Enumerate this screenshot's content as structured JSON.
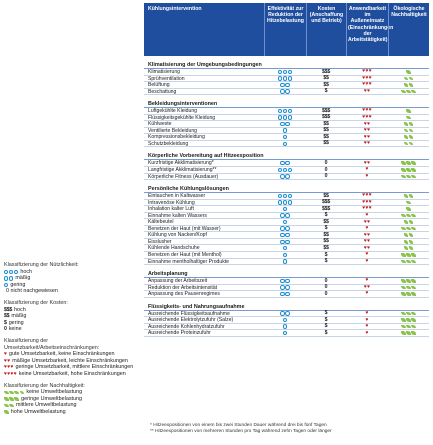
{
  "header": {
    "col0": "Kühlungsintervention",
    "col1": "Effektivität zur Reduktion der Hitzebelastung",
    "col2": "Kosten (Anschaffung und Betrieb)",
    "col3": "Anwendbarkeit im Außeneinsatz (Einschränkungen der Arbeitstätigkeit)",
    "col4": "Ökologische Nachhaltigkeit"
  },
  "sections": [
    {
      "title": "Klimatisierung der Umgebungsbedingungen",
      "rows": [
        {
          "label": "Klimatisierung",
          "eff": 3,
          "cost": "$$$",
          "app": 3,
          "eco": 1
        },
        {
          "label": "Sprühventilation",
          "eff": 3,
          "cost": "$$",
          "app": 3,
          "eco": 2
        },
        {
          "label": "Belüftung",
          "eff": 2,
          "cost": "$$",
          "app": 3,
          "eco": 2
        },
        {
          "label": "Beschattung",
          "eff": 2,
          "cost": "$",
          "app": 2,
          "eco": 3
        }
      ]
    },
    {
      "title": "Bekleidungsinterventionen",
      "rows": [
        {
          "label": "Luftgekühlte Kleidung",
          "eff": 3,
          "cost": "$$$",
          "app": 3,
          "eco": 1
        },
        {
          "label": "Flüssigkeitsgekühlte Kleidung",
          "eff": 3,
          "cost": "$$$",
          "app": 3,
          "eco": 1
        },
        {
          "label": "Kühlweste",
          "eff": 2,
          "cost": "$$",
          "app": 2,
          "eco": 2
        },
        {
          "label": "Ventilierte Bekleidung",
          "eff": 1,
          "cost": "$$",
          "app": 2,
          "eco": 2
        },
        {
          "label": "Kompressionsbekleidung",
          "eff": 1,
          "cost": "$$",
          "app": 2,
          "eco": 2
        },
        {
          "label": "Schutzbekleidung",
          "eff": 1,
          "cost": "$$",
          "app": 2,
          "eco": 2
        }
      ]
    },
    {
      "title": "Körperliche Vorbereitung auf Hitzeexposition",
      "rows": [
        {
          "label": "Kurzfristige Akklimatisierung*",
          "eff": 2,
          "cost": "0",
          "app": 2,
          "eco": 3
        },
        {
          "label": "Langfristige Akklimatisierung**",
          "eff": 3,
          "cost": "0",
          "app": 1,
          "eco": 3
        },
        {
          "label": "Körperliche Fitness (Ausdauer)",
          "eff": 2,
          "cost": "0",
          "app": 1,
          "eco": 3
        }
      ]
    },
    {
      "title": "Persönliche Kühlungslösungen",
      "rows": [
        {
          "label": "Eintauchen in Kaltwasser",
          "eff": 3,
          "cost": "$$",
          "app": 3,
          "eco": 2
        },
        {
          "label": "Intravenöse Kühlung",
          "eff": 3,
          "cost": "$$$",
          "app": 3,
          "eco": 1
        },
        {
          "label": "Inhalation kalter Luft",
          "eff": 1,
          "cost": "$$$",
          "app": 3,
          "eco": 1
        },
        {
          "label": "Einnahme kalten Wassers",
          "eff": 2,
          "cost": "$",
          "app": 1,
          "eco": 3
        },
        {
          "label": "Kältebeutel",
          "eff": 1,
          "cost": "$$",
          "app": 2,
          "eco": 2
        },
        {
          "label": "Benetzen der Haut (mit Wasser)",
          "eff": 2,
          "cost": "$",
          "app": 1,
          "eco": 3
        },
        {
          "label": "Kühlung von Nacken/Kopf",
          "eff": 2,
          "cost": "$$",
          "app": 2,
          "eco": 2
        },
        {
          "label": "Eisslusher",
          "eff": 2,
          "cost": "$$",
          "app": 2,
          "eco": 2
        },
        {
          "label": "Kühlende Handschuhe",
          "eff": 1,
          "cost": "$$",
          "app": 2,
          "eco": 2
        },
        {
          "label": "Benetzen der Haut (mit Menthol)",
          "eff": 1,
          "cost": "$",
          "app": 1,
          "eco": 3
        },
        {
          "label": "Einnahme mentholhaltiger Produkte",
          "eff": 1,
          "cost": "$",
          "app": 1,
          "eco": 3
        }
      ]
    },
    {
      "title": "Arbeitsplanung",
      "rows": [
        {
          "label": "Anpassung der Arbeitszeit",
          "eff": 2,
          "cost": "0",
          "app": 1,
          "eco": 3
        },
        {
          "label": "Reduktion der Arbeitsintensität",
          "eff": 2,
          "cost": "0",
          "app": 2,
          "eco": 3
        },
        {
          "label": "Anpassung des Pausenregimes",
          "eff": 2,
          "cost": "0",
          "app": 1,
          "eco": 3
        }
      ]
    },
    {
      "title": "Flüssigkeits- und Nahrungsaufnahme",
      "rows": [
        {
          "label": "Ausreichende Flüssigkeitsaufnahme",
          "eff": 2,
          "cost": "$",
          "app": 1,
          "eco": 3
        },
        {
          "label": "Ausreichende Elektrolytzufuhr (Salze)",
          "eff": 1,
          "cost": "$",
          "app": 1,
          "eco": 3
        },
        {
          "label": "Ausreichende Kohlenhydratzufuhr",
          "eff": 1,
          "cost": "$",
          "app": 1,
          "eco": 3
        },
        {
          "label": "Ausreichende Proteinzufuhr",
          "eff": 1,
          "cost": "$",
          "app": 1,
          "eco": 3
        }
      ]
    }
  ],
  "legend": {
    "benefit_title": "Klassifizierung der Nützlichkeit:",
    "benefit": [
      {
        "n": 3,
        "text": "hoch"
      },
      {
        "n": 2,
        "text": "mäßig"
      },
      {
        "n": 1,
        "text": "gering"
      },
      {
        "n": 0,
        "text": "0 nicht nachgewiesen"
      }
    ],
    "cost_title": "Klassifizierung der Kosten:",
    "cost": [
      {
        "sym": "$$$",
        "text": "hoch"
      },
      {
        "sym": "$$",
        "text": "mäßig"
      },
      {
        "sym": "$",
        "text": "gering"
      },
      {
        "sym": "0",
        "text": "keine"
      }
    ],
    "app_title": "Klassifizierung der Umsetzbarkeit/Arbeitseinschränkungen:",
    "app": [
      {
        "n": 1,
        "text": "gute Umsetzbarkeit, keine Einschränkungen"
      },
      {
        "n": 2,
        "text": "mäßige Umsetzbarkeit, leichte Einschränkungen"
      },
      {
        "n": 3,
        "text": "geringe Umsetzbarkeit, mittlere Einschränkungen"
      },
      {
        "n": 4,
        "text": "keine Umsetzbarkeit, hohe Einschränkungen"
      }
    ],
    "eco_title": "Klassifizierung der Nachhaltigkeit:",
    "eco": [
      {
        "n": 4,
        "text": "keine Umweltbelastung"
      },
      {
        "n": 3,
        "text": "geringe Umweltbelastung"
      },
      {
        "n": 2,
        "text": "mittlere Umweltbelastung"
      },
      {
        "n": 1,
        "text": "hohe Umweltbelastung"
      }
    ]
  },
  "footnotes": {
    "f1": "* Hitzeexpositionen von einem bis zwei Stunden Dauer während drei bis fünf Tagen",
    "f2": "** Hitzeexpositionen von mehreren Stunden pro Tag während zehn Tagen oder länger"
  },
  "colors": {
    "header": "#1f4e9e",
    "dot": "#1c8fd4",
    "heart": "#c21a1a",
    "leaf": "#8bc34a"
  }
}
